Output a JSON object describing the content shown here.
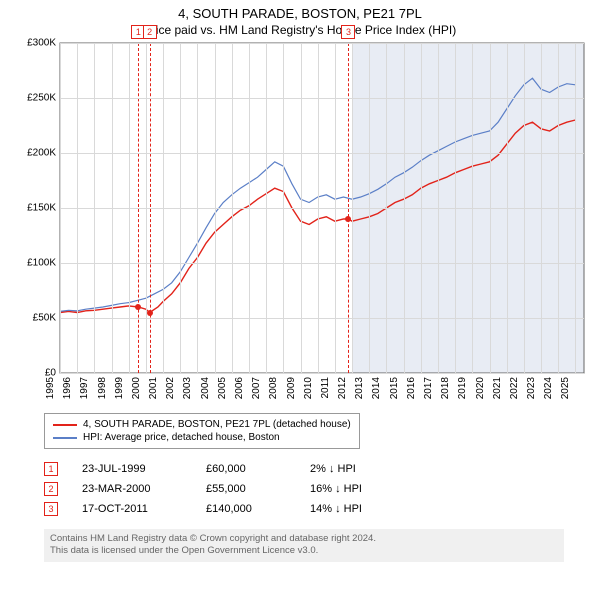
{
  "title": "4, SOUTH PARADE, BOSTON, PE21 7PL",
  "subtitle": "Price paid vs. HM Land Registry's House Price Index (HPI)",
  "chart": {
    "type": "line",
    "background_color": "#ffffff",
    "shade_color": "#e8ecf4",
    "grid_color": "#d9d9d9",
    "axis_color": "#666666",
    "label_fontsize": 10,
    "xlim": [
      1995,
      2025.5
    ],
    "ylim": [
      0,
      300000
    ],
    "yticks": [
      {
        "v": 0,
        "label": "£0"
      },
      {
        "v": 50000,
        "label": "£50K"
      },
      {
        "v": 100000,
        "label": "£100K"
      },
      {
        "v": 150000,
        "label": "£150K"
      },
      {
        "v": 200000,
        "label": "£200K"
      },
      {
        "v": 250000,
        "label": "£250K"
      },
      {
        "v": 300000,
        "label": "£300K"
      }
    ],
    "xticks": [
      1995,
      1996,
      1997,
      1998,
      1999,
      2000,
      2001,
      2002,
      2003,
      2004,
      2005,
      2006,
      2007,
      2008,
      2009,
      2010,
      2011,
      2012,
      2013,
      2014,
      2015,
      2016,
      2017,
      2018,
      2019,
      2020,
      2021,
      2022,
      2023,
      2024,
      2025
    ],
    "shade_from_x": 2012.0,
    "series": [
      {
        "name": "price_paid",
        "color": "#e2231a",
        "width": 1.4,
        "data": [
          [
            1995.0,
            55000
          ],
          [
            1995.5,
            56000
          ],
          [
            1996.0,
            55000
          ],
          [
            1996.5,
            56500
          ],
          [
            1997.0,
            57000
          ],
          [
            1997.5,
            58000
          ],
          [
            1998.0,
            59000
          ],
          [
            1998.5,
            60000
          ],
          [
            1999.0,
            61000
          ],
          [
            1999.56,
            60000
          ],
          [
            2000.0,
            58000
          ],
          [
            2000.22,
            55000
          ],
          [
            2000.7,
            60000
          ],
          [
            2001.0,
            65000
          ],
          [
            2001.5,
            72000
          ],
          [
            2002.0,
            82000
          ],
          [
            2002.5,
            95000
          ],
          [
            2003.0,
            105000
          ],
          [
            2003.5,
            118000
          ],
          [
            2004.0,
            128000
          ],
          [
            2004.5,
            135000
          ],
          [
            2005.0,
            142000
          ],
          [
            2005.5,
            148000
          ],
          [
            2006.0,
            152000
          ],
          [
            2006.5,
            158000
          ],
          [
            2007.0,
            163000
          ],
          [
            2007.5,
            168000
          ],
          [
            2008.0,
            165000
          ],
          [
            2008.5,
            150000
          ],
          [
            2009.0,
            138000
          ],
          [
            2009.5,
            135000
          ],
          [
            2010.0,
            140000
          ],
          [
            2010.5,
            142000
          ],
          [
            2011.0,
            138000
          ],
          [
            2011.5,
            140000
          ],
          [
            2011.79,
            140000
          ],
          [
            2012.0,
            138000
          ],
          [
            2012.5,
            140000
          ],
          [
            2013.0,
            142000
          ],
          [
            2013.5,
            145000
          ],
          [
            2014.0,
            150000
          ],
          [
            2014.5,
            155000
          ],
          [
            2015.0,
            158000
          ],
          [
            2015.5,
            162000
          ],
          [
            2016.0,
            168000
          ],
          [
            2016.5,
            172000
          ],
          [
            2017.0,
            175000
          ],
          [
            2017.5,
            178000
          ],
          [
            2018.0,
            182000
          ],
          [
            2018.5,
            185000
          ],
          [
            2019.0,
            188000
          ],
          [
            2019.5,
            190000
          ],
          [
            2020.0,
            192000
          ],
          [
            2020.5,
            198000
          ],
          [
            2021.0,
            208000
          ],
          [
            2021.5,
            218000
          ],
          [
            2022.0,
            225000
          ],
          [
            2022.5,
            228000
          ],
          [
            2023.0,
            222000
          ],
          [
            2023.5,
            220000
          ],
          [
            2024.0,
            225000
          ],
          [
            2024.5,
            228000
          ],
          [
            2025.0,
            230000
          ]
        ]
      },
      {
        "name": "hpi",
        "color": "#5b7fc7",
        "width": 1.2,
        "data": [
          [
            1995.0,
            56000
          ],
          [
            1995.5,
            57000
          ],
          [
            1996.0,
            56500
          ],
          [
            1996.5,
            58000
          ],
          [
            1997.0,
            59000
          ],
          [
            1997.5,
            60000
          ],
          [
            1998.0,
            61500
          ],
          [
            1998.5,
            63000
          ],
          [
            1999.0,
            64000
          ],
          [
            1999.5,
            66000
          ],
          [
            2000.0,
            68000
          ],
          [
            2000.5,
            72000
          ],
          [
            2001.0,
            76000
          ],
          [
            2001.5,
            82000
          ],
          [
            2002.0,
            92000
          ],
          [
            2002.5,
            105000
          ],
          [
            2003.0,
            118000
          ],
          [
            2003.5,
            132000
          ],
          [
            2004.0,
            145000
          ],
          [
            2004.5,
            155000
          ],
          [
            2005.0,
            162000
          ],
          [
            2005.5,
            168000
          ],
          [
            2006.0,
            173000
          ],
          [
            2006.5,
            178000
          ],
          [
            2007.0,
            185000
          ],
          [
            2007.5,
            192000
          ],
          [
            2008.0,
            188000
          ],
          [
            2008.5,
            172000
          ],
          [
            2009.0,
            158000
          ],
          [
            2009.5,
            155000
          ],
          [
            2010.0,
            160000
          ],
          [
            2010.5,
            162000
          ],
          [
            2011.0,
            158000
          ],
          [
            2011.5,
            160000
          ],
          [
            2012.0,
            158000
          ],
          [
            2012.5,
            160000
          ],
          [
            2013.0,
            163000
          ],
          [
            2013.5,
            167000
          ],
          [
            2014.0,
            172000
          ],
          [
            2014.5,
            178000
          ],
          [
            2015.0,
            182000
          ],
          [
            2015.5,
            187000
          ],
          [
            2016.0,
            193000
          ],
          [
            2016.5,
            198000
          ],
          [
            2017.0,
            202000
          ],
          [
            2017.5,
            206000
          ],
          [
            2018.0,
            210000
          ],
          [
            2018.5,
            213000
          ],
          [
            2019.0,
            216000
          ],
          [
            2019.5,
            218000
          ],
          [
            2020.0,
            220000
          ],
          [
            2020.5,
            228000
          ],
          [
            2021.0,
            240000
          ],
          [
            2021.5,
            252000
          ],
          [
            2022.0,
            262000
          ],
          [
            2022.5,
            268000
          ],
          [
            2023.0,
            258000
          ],
          [
            2023.5,
            255000
          ],
          [
            2024.0,
            260000
          ],
          [
            2024.5,
            263000
          ],
          [
            2025.0,
            262000
          ]
        ]
      }
    ],
    "sale_markers": [
      {
        "n": "1",
        "x": 1999.56,
        "y": 60000,
        "color": "#e2231a"
      },
      {
        "n": "2",
        "x": 2000.22,
        "y": 55000,
        "color": "#e2231a"
      },
      {
        "n": "3",
        "x": 2011.79,
        "y": 140000,
        "color": "#e2231a"
      }
    ]
  },
  "legend": {
    "items": [
      {
        "color": "#e2231a",
        "label": "4, SOUTH PARADE, BOSTON, PE21 7PL (detached house)"
      },
      {
        "color": "#5b7fc7",
        "label": "HPI: Average price, detached house, Boston"
      }
    ]
  },
  "sales": [
    {
      "n": "1",
      "date": "23-JUL-1999",
      "price": "£60,000",
      "delta": "2% ↓ HPI",
      "color": "#e2231a"
    },
    {
      "n": "2",
      "date": "23-MAR-2000",
      "price": "£55,000",
      "delta": "16% ↓ HPI",
      "color": "#e2231a"
    },
    {
      "n": "3",
      "date": "17-OCT-2011",
      "price": "£140,000",
      "delta": "14% ↓ HPI",
      "color": "#e2231a"
    }
  ],
  "footnote_l1": "Contains HM Land Registry data © Crown copyright and database right 2024.",
  "footnote_l2": "This data is licensed under the Open Government Licence v3.0."
}
